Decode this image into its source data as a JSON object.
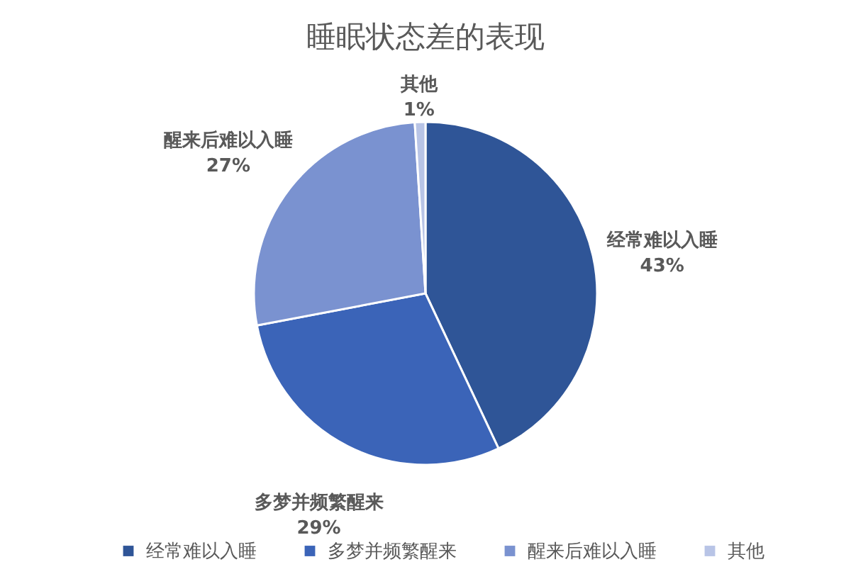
{
  "chart_data": {
    "type": "pie",
    "title": "睡眠状态差的表现",
    "categories": [
      "经常难以入睡",
      "多梦并频繁醒来",
      "醒来后难以入睡",
      "其他"
    ],
    "values": [
      43,
      29,
      27,
      1
    ],
    "colors": [
      "#2f5597",
      "#3b64b8",
      "#7a92d0",
      "#b8c4e6"
    ],
    "value_labels": [
      "43%",
      "29%",
      "27%",
      "1%"
    ],
    "legend": "bottom"
  }
}
